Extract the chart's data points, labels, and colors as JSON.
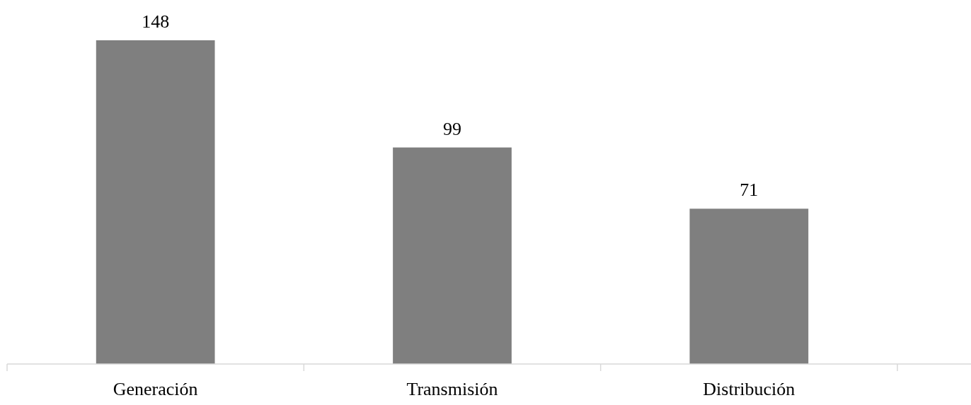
{
  "chart_data": {
    "type": "bar",
    "categories": [
      "Generación",
      "Transmisión",
      "Distribución"
    ],
    "values": [
      148,
      99,
      71
    ],
    "color": "#7f7f7f",
    "data_labels": true
  }
}
